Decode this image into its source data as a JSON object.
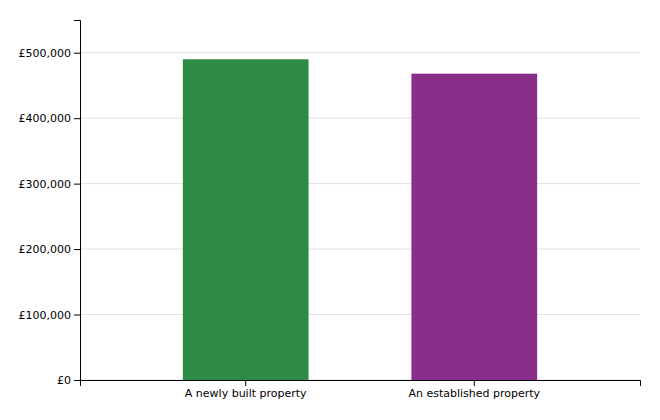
{
  "chart_data": {
    "type": "bar",
    "categories": [
      "A newly built property",
      "An established property"
    ],
    "values": [
      490000,
      468000
    ],
    "colors": [
      "#2e8b45",
      "#8b2d8b"
    ],
    "ylim": [
      0,
      550000
    ],
    "yticks": [
      {
        "value": 0,
        "label": "£0"
      },
      {
        "value": 100000,
        "label": "£100,000"
      },
      {
        "value": 200000,
        "label": "£200,000"
      },
      {
        "value": 300000,
        "label": "£300,000"
      },
      {
        "value": 400000,
        "label": "£400,000"
      },
      {
        "value": 500000,
        "label": "£500,000"
      }
    ],
    "grid": true
  }
}
